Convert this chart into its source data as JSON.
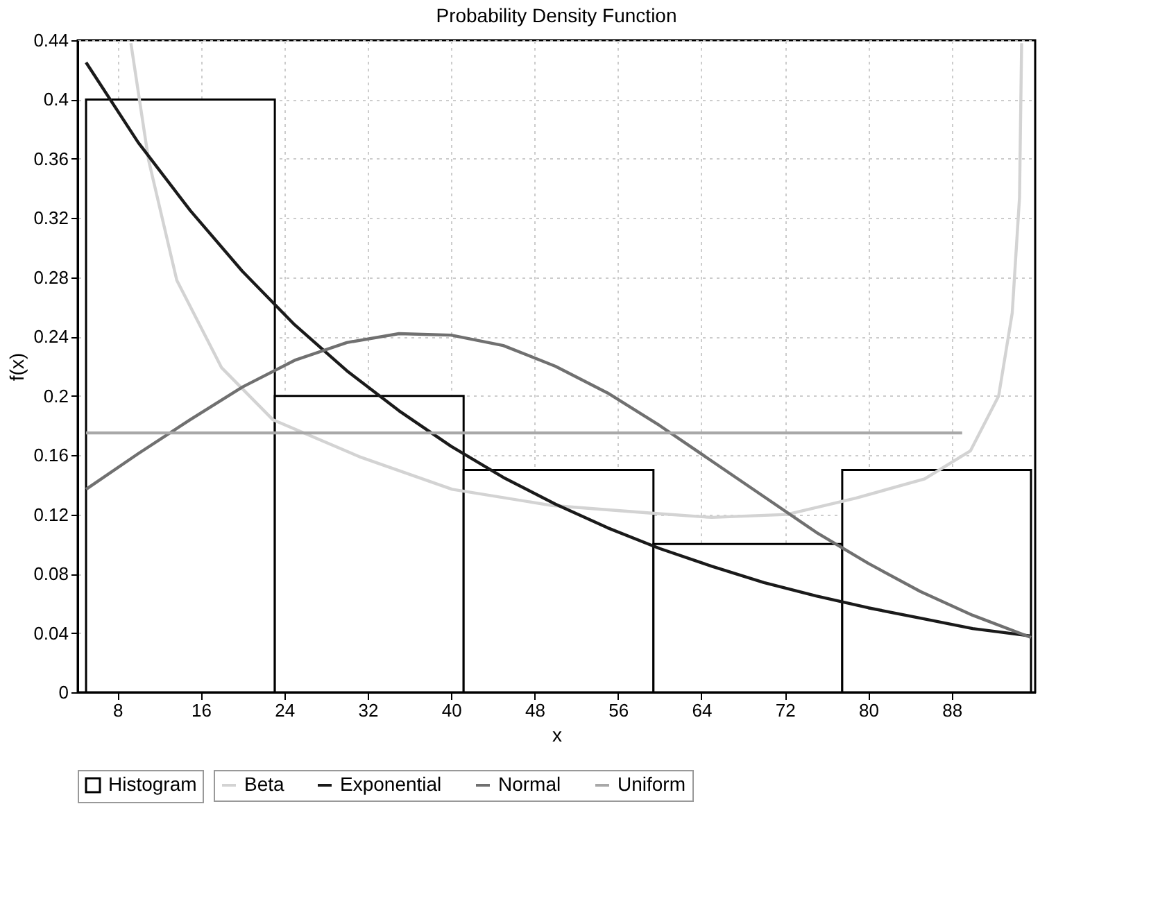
{
  "chart_data": {
    "type": "line",
    "title": "Probability Density Function",
    "xlabel": "x",
    "ylabel": "f(x)",
    "xlim": [
      4.2,
      96
    ],
    "xticks": [
      8,
      16,
      24,
      32,
      40,
      48,
      56,
      64,
      72,
      80,
      88
    ],
    "ylim": [
      0,
      0.44
    ],
    "yticks": [
      0,
      0.04,
      0.08,
      0.12,
      0.16,
      0.2,
      0.24,
      0.28,
      0.32,
      0.36,
      0.4,
      0.44
    ],
    "grid": true,
    "legend": "bottom",
    "marker": "none",
    "line_style": "solid",
    "series": [
      {
        "type": "histogram",
        "name": "Histogram",
        "color": "#000000",
        "bins": [
          5,
          23.1,
          41.2,
          59.4,
          77.5,
          95.6
        ],
        "values": [
          0.4,
          0.2,
          0.15,
          0.1,
          0.15
        ]
      },
      {
        "name": "Beta",
        "color": "#d3d3d3",
        "x": [
          9.3,
          11,
          13.7,
          18,
          22.9,
          31.2,
          40.1,
          49.7,
          59,
          65,
          72.2,
          78.8,
          85.4,
          89.8,
          92.5,
          93.8,
          94.5,
          94.7
        ],
        "values": [
          0.438,
          0.359,
          0.278,
          0.219,
          0.184,
          0.159,
          0.137,
          0.126,
          0.121,
          0.118,
          0.12,
          0.131,
          0.144,
          0.163,
          0.2,
          0.256,
          0.334,
          0.438
        ]
      },
      {
        "name": "Exponential",
        "color": "#1a1a1a",
        "x": [
          5,
          10,
          15,
          20,
          25,
          30,
          35,
          40,
          45,
          50,
          55,
          60,
          65,
          70,
          75,
          80,
          85,
          90,
          95.6
        ],
        "values": [
          0.425,
          0.371,
          0.325,
          0.284,
          0.248,
          0.217,
          0.19,
          0.166,
          0.145,
          0.127,
          0.111,
          0.097,
          0.085,
          0.074,
          0.065,
          0.057,
          0.05,
          0.043,
          0.038
        ]
      },
      {
        "name": "Normal",
        "color": "#707070",
        "x": [
          5,
          10,
          15,
          20,
          25,
          30,
          35,
          40,
          45,
          50,
          55,
          60,
          65,
          70,
          75,
          80,
          85,
          90,
          95.6
        ],
        "values": [
          0.137,
          0.161,
          0.184,
          0.206,
          0.224,
          0.236,
          0.242,
          0.241,
          0.234,
          0.22,
          0.202,
          0.18,
          0.156,
          0.132,
          0.108,
          0.087,
          0.068,
          0.052,
          0.037
        ]
      },
      {
        "name": "Uniform",
        "color": "#a8a8a8",
        "x": [
          5,
          89
        ],
        "values": [
          0.175,
          0.175
        ]
      }
    ]
  }
}
